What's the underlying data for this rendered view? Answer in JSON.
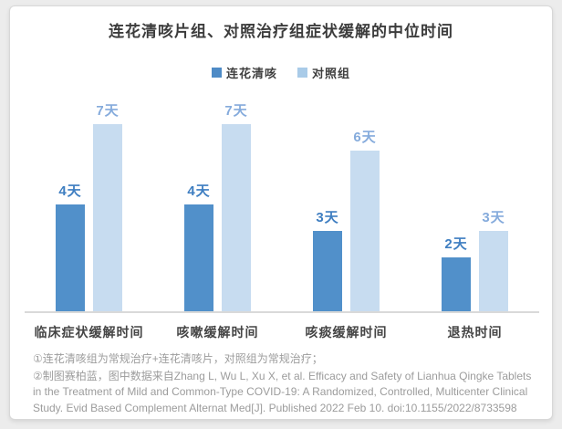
{
  "chart_data": {
    "type": "bar",
    "title": "连花清咳片组、对照治疗组症状缓解的中位时间",
    "categories": [
      "临床症状缓解时间",
      "咳嗽缓解时间",
      "咳痰缓解时间",
      "退热时间"
    ],
    "series": [
      {
        "name": "连花清咳",
        "values": [
          4,
          4,
          3,
          2
        ],
        "labels": [
          "4天",
          "4天",
          "3天",
          "2天"
        ],
        "bar_color": "#5190ca",
        "label_color": "#3e7ec1",
        "swatch_color": "#4e8bc6"
      },
      {
        "name": "对照组",
        "values": [
          7,
          7,
          6,
          3
        ],
        "labels": [
          "7天",
          "7天",
          "6天",
          "3天"
        ],
        "bar_color": "#c7dcf0",
        "label_color": "#85abdc",
        "swatch_color": "#a9cbe8"
      }
    ],
    "unit": "天",
    "ylim": [
      0,
      7
    ],
    "legend_position": "top",
    "grid": false,
    "colors": {
      "title_text": "#3c3c3c",
      "axis_line": "#d9d9d9",
      "category_text": "#454545",
      "footnote_text": "#9c9c9c"
    }
  },
  "footnotes": [
    "①连花清咳组为常规治疗+连花清咳片，对照组为常规治疗；",
    "②制图赛柏蓝，图中数据来自Zhang L, Wu L, Xu X, et al. Efficacy and Safety of Lianhua Qingke Tablets in the Treatment of Mild and Common-Type COVID-19: A Randomized, Controlled, Multicenter Clinical Study. Evid Based Complement Alternat Med[J]. Published 2022 Feb 10. doi:10.1155/2022/8733598"
  ]
}
